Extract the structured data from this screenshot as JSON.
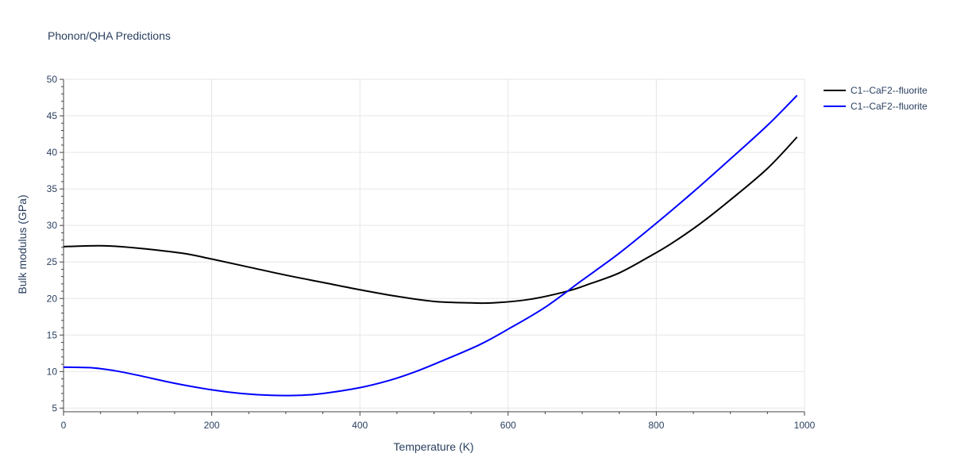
{
  "chart_data": {
    "type": "line",
    "title": "Phonon/QHA Predictions",
    "xlabel": "Temperature (K)",
    "ylabel": "Bulk modulus (GPa)",
    "xlim": [
      0,
      1000
    ],
    "ylim": [
      4.5,
      50
    ],
    "xticks": [
      0,
      200,
      400,
      600,
      800,
      1000
    ],
    "yticks": [
      5,
      10,
      15,
      20,
      25,
      30,
      35,
      40,
      45,
      50
    ],
    "grid": true,
    "legend_position": "top-right",
    "series": [
      {
        "name": "C1--CaF2--fluorite",
        "color": "#000000",
        "x": [
          0,
          30,
          60,
          100,
          160,
          200,
          250,
          300,
          350,
          400,
          450,
          500,
          550,
          580,
          630,
          680,
          710,
          750,
          790,
          820,
          860,
          900,
          950,
          990
        ],
        "y": [
          27.1,
          27.2,
          27.2,
          26.9,
          26.2,
          25.4,
          24.3,
          23.2,
          22.2,
          21.2,
          20.3,
          19.6,
          19.4,
          19.4,
          19.9,
          21.0,
          22.0,
          23.5,
          25.7,
          27.5,
          30.3,
          33.5,
          37.8,
          42.1
        ]
      },
      {
        "name": "C1--CaF2--fluorite",
        "color": "#0000ff",
        "x": [
          0,
          40,
          70,
          100,
          150,
          200,
          240,
          280,
          320,
          350,
          400,
          440,
          470,
          500,
          560,
          600,
          650,
          700,
          750,
          800,
          850,
          900,
          950,
          990
        ],
        "y": [
          10.6,
          10.5,
          10.1,
          9.5,
          8.4,
          7.5,
          7.0,
          6.75,
          6.75,
          7.0,
          7.8,
          8.8,
          9.8,
          11.0,
          13.6,
          15.8,
          18.8,
          22.5,
          26.2,
          30.3,
          34.6,
          39.1,
          43.7,
          47.8
        ]
      }
    ]
  }
}
